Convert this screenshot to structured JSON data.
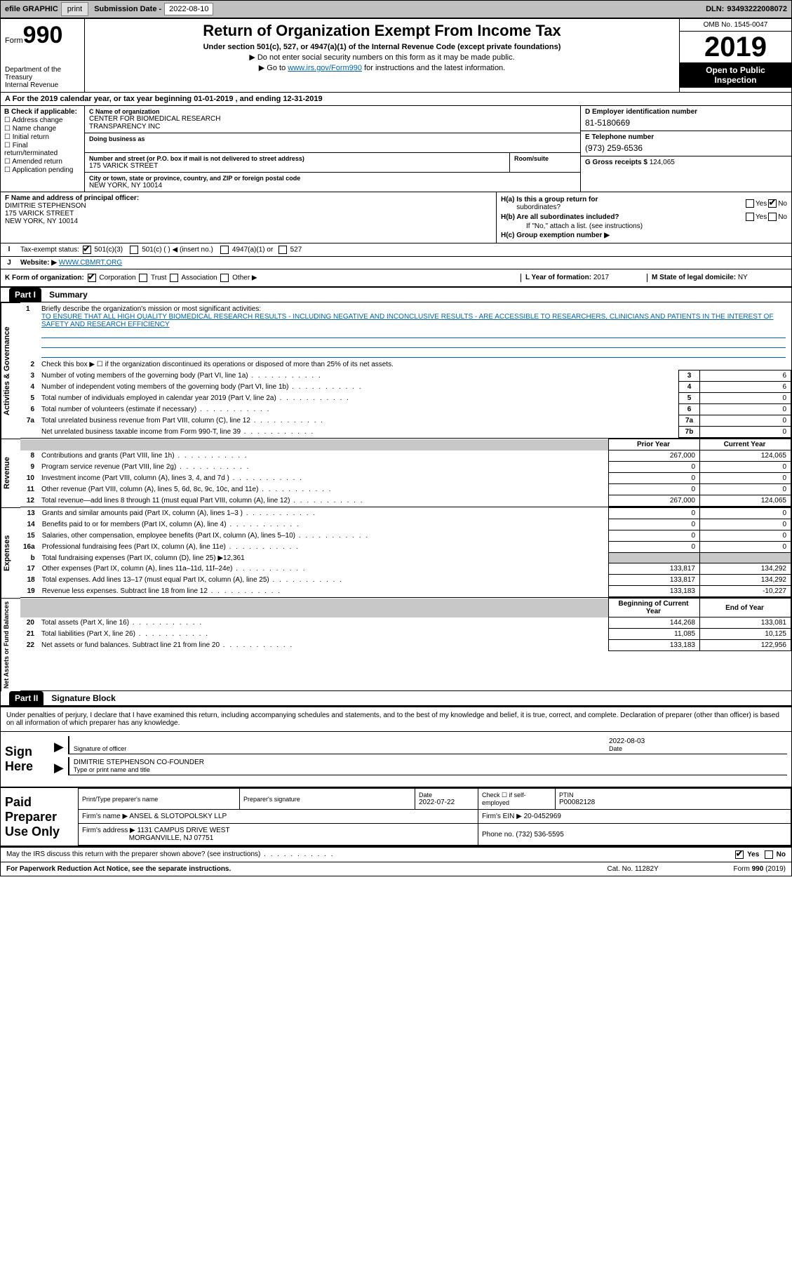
{
  "topbar": {
    "efile_label": "efile GRAPHIC",
    "print_btn": "print",
    "sub_date_label": "Submission Date - ",
    "sub_date": "2022-08-10",
    "dln_label": "DLN: ",
    "dln": "93493222008072"
  },
  "header": {
    "form_word": "Form",
    "form_num": "990",
    "dept1": "Department of the Treasury",
    "dept2": "Internal Revenue",
    "title": "Return of Organization Exempt From Income Tax",
    "sub1": "Under section 501(c), 527, or 4947(a)(1) of the Internal Revenue Code (except private foundations)",
    "sub2": "▶ Do not enter social security numbers on this form as it may be made public.",
    "sub3_pre": "▶ Go to ",
    "sub3_link": "www.irs.gov/Form990",
    "sub3_post": " for instructions and the latest information.",
    "omb": "OMB No. 1545-0047",
    "year": "2019",
    "open1": "Open to Public",
    "open2": "Inspection"
  },
  "period": "A For the 2019 calendar year, or tax year beginning 01-01-2019    , and ending 12-31-2019",
  "colB": {
    "hdr": "B Check if applicable:",
    "opts": [
      "Address change",
      "Name change",
      "Initial return",
      "Final return/terminated",
      "Amended return",
      "Application pending"
    ]
  },
  "colC": {
    "name_hdr": "C Name of organization",
    "name1": "CENTER FOR BIOMEDICAL RESEARCH",
    "name2": "TRANSPARENCY INC",
    "dba_hdr": "Doing business as",
    "addr_hdr": "Number and street (or P.O. box if mail is not delivered to street address)",
    "addr": "175 VARICK STREET",
    "room_hdr": "Room/suite",
    "city_hdr": "City or town, state or province, country, and ZIP or foreign postal code",
    "city": "NEW YORK, NY  10014"
  },
  "colD": {
    "hdr": "D Employer identification number",
    "ein": "81-5180669",
    "tel_hdr": "E Telephone number",
    "tel": "(973) 259-6536",
    "gross_hdr": "G Gross receipts $ ",
    "gross": "124,065"
  },
  "colF": {
    "hdr": "F Name and address of principal officer:",
    "l1": "DIMITRIE STEPHENSON",
    "l2": "175 VARICK STREET",
    "l3": "NEW YORK, NY  10014"
  },
  "colH": {
    "a_lbl": "H(a)  Is this a group return for",
    "a_lbl2": "subordinates?",
    "b_lbl": "H(b)  Are all subordinates included?",
    "b_note": "If \"No,\" attach a list. (see instructions)",
    "c_lbl": "H(c)  Group exemption number ▶",
    "yes": "Yes",
    "no": "No"
  },
  "rowI": {
    "lbl": "Tax-exempt status:",
    "o1": "501(c)(3)",
    "o2": "501(c) (   ) ◀ (insert no.)",
    "o3": "4947(a)(1) or",
    "o4": "527"
  },
  "rowJ": {
    "lbl": "Website: ▶",
    "val": "WWW.CBMRT.ORG"
  },
  "rowK": {
    "lbl": "K Form of organization:",
    "o1": "Corporation",
    "o2": "Trust",
    "o3": "Association",
    "o4": "Other ▶",
    "l_lbl": "L Year of formation: ",
    "l_val": "2017",
    "m_lbl": "M State of legal domicile: ",
    "m_val": "NY"
  },
  "part1": {
    "num": "Part I",
    "title": "Summary"
  },
  "mission": {
    "num": "1",
    "lbl": "Briefly describe the organization's mission or most significant activities:",
    "text": "TO ENSURE THAT ALL HIGH QUALITY BIOMEDICAL RESEARCH RESULTS - INCLUDING NEGATIVE AND INCONCLUSIVE RESULTS - ARE ACCESSIBLE TO RESEARCHERS, CLINICIANS AND PATIENTS IN THE INTEREST OF SAFETY AND RESEARCH EFFICIENCY"
  },
  "gov_rows": [
    {
      "n": "2",
      "d": "Check this box ▶ ☐  if the organization discontinued its operations or disposed of more than 25% of its net assets.",
      "box": "",
      "v": ""
    },
    {
      "n": "3",
      "d": "Number of voting members of the governing body (Part VI, line 1a)",
      "box": "3",
      "v": "6"
    },
    {
      "n": "4",
      "d": "Number of independent voting members of the governing body (Part VI, line 1b)",
      "box": "4",
      "v": "6"
    },
    {
      "n": "5",
      "d": "Total number of individuals employed in calendar year 2019 (Part V, line 2a)",
      "box": "5",
      "v": "0"
    },
    {
      "n": "6",
      "d": "Total number of volunteers (estimate if necessary)",
      "box": "6",
      "v": "0"
    },
    {
      "n": "7a",
      "d": "Total unrelated business revenue from Part VIII, column (C), line 12",
      "box": "7a",
      "v": "0"
    },
    {
      "n": "",
      "d": "Net unrelated business taxable income from Form 990-T, line 39",
      "box": "7b",
      "v": "0"
    }
  ],
  "rev_hdr": {
    "py": "Prior Year",
    "cy": "Current Year"
  },
  "rev_rows": [
    {
      "n": "8",
      "d": "Contributions and grants (Part VIII, line 1h)",
      "py": "267,000",
      "cy": "124,065"
    },
    {
      "n": "9",
      "d": "Program service revenue (Part VIII, line 2g)",
      "py": "0",
      "cy": "0"
    },
    {
      "n": "10",
      "d": "Investment income (Part VIII, column (A), lines 3, 4, and 7d )",
      "py": "0",
      "cy": "0"
    },
    {
      "n": "11",
      "d": "Other revenue (Part VIII, column (A), lines 5, 6d, 8c, 9c, 10c, and 11e)",
      "py": "0",
      "cy": "0"
    },
    {
      "n": "12",
      "d": "Total revenue—add lines 8 through 11 (must equal Part VIII, column (A), line 12)",
      "py": "267,000",
      "cy": "124,065"
    }
  ],
  "exp_rows": [
    {
      "n": "13",
      "d": "Grants and similar amounts paid (Part IX, column (A), lines 1–3 )",
      "py": "0",
      "cy": "0"
    },
    {
      "n": "14",
      "d": "Benefits paid to or for members (Part IX, column (A), line 4)",
      "py": "0",
      "cy": "0"
    },
    {
      "n": "15",
      "d": "Salaries, other compensation, employee benefits (Part IX, column (A), lines 5–10)",
      "py": "0",
      "cy": "0"
    },
    {
      "n": "16a",
      "d": "Professional fundraising fees (Part IX, column (A), line 11e)",
      "py": "0",
      "cy": "0"
    },
    {
      "n": "b",
      "d": "Total fundraising expenses (Part IX, column (D), line 25) ▶12,361",
      "py": "",
      "cy": "",
      "shade": true
    },
    {
      "n": "17",
      "d": "Other expenses (Part IX, column (A), lines 11a–11d, 11f–24e)",
      "py": "133,817",
      "cy": "134,292"
    },
    {
      "n": "18",
      "d": "Total expenses. Add lines 13–17 (must equal Part IX, column (A), line 25)",
      "py": "133,817",
      "cy": "134,292"
    },
    {
      "n": "19",
      "d": "Revenue less expenses. Subtract line 18 from line 12",
      "py": "133,183",
      "cy": "-10,227"
    }
  ],
  "net_hdr": {
    "py": "Beginning of Current Year",
    "cy": "End of Year"
  },
  "net_rows": [
    {
      "n": "20",
      "d": "Total assets (Part X, line 16)",
      "py": "144,268",
      "cy": "133,081"
    },
    {
      "n": "21",
      "d": "Total liabilities (Part X, line 26)",
      "py": "11,085",
      "cy": "10,125"
    },
    {
      "n": "22",
      "d": "Net assets or fund balances. Subtract line 21 from line 20",
      "py": "133,183",
      "cy": "122,956"
    }
  ],
  "part2": {
    "num": "Part II",
    "title": "Signature Block"
  },
  "sig": {
    "decl": "Under penalties of perjury, I declare that I have examined this return, including accompanying schedules and statements, and to the best of my knowledge and belief, it is true, correct, and complete. Declaration of preparer (other than officer) is based on all information of which preparer has any knowledge.",
    "sign_here": "Sign Here",
    "sig_lbl": "Signature of officer",
    "date_lbl": "Date",
    "date": "2022-08-03",
    "name": "DIMITRIE STEPHENSON  CO-FOUNDER",
    "name_lbl": "Type or print name and title"
  },
  "prep": {
    "hdr": "Paid Preparer Use Only",
    "c1": "Print/Type preparer's name",
    "c2": "Preparer's signature",
    "c3": "Date",
    "c3v": "2022-07-22",
    "c4": "Check ☐ if self-employed",
    "c5": "PTIN",
    "c5v": "P00082128",
    "firm_lbl": "Firm's name     ▶",
    "firm": "ANSEL & SLOTOPOLSKY LLP",
    "ein_lbl": "Firm's EIN ▶",
    "ein": "20-0452969",
    "addr_lbl": "Firm's address ▶",
    "addr1": "1131 CAMPUS DRIVE WEST",
    "addr2": "MORGANVILLE, NJ  07751",
    "ph_lbl": "Phone no. ",
    "ph": "(732) 536-5595"
  },
  "discuss": {
    "q": "May the IRS discuss this return with the preparer shown above? (see instructions)",
    "yes": "Yes",
    "no": "No"
  },
  "footer": {
    "l": "For Paperwork Reduction Act Notice, see the separate instructions.",
    "c": "Cat. No. 11282Y",
    "r": "Form 990 (2019)"
  },
  "side_labels": {
    "gov": "Activities & Governance",
    "rev": "Revenue",
    "exp": "Expenses",
    "net": "Net Assets or Fund Balances"
  }
}
